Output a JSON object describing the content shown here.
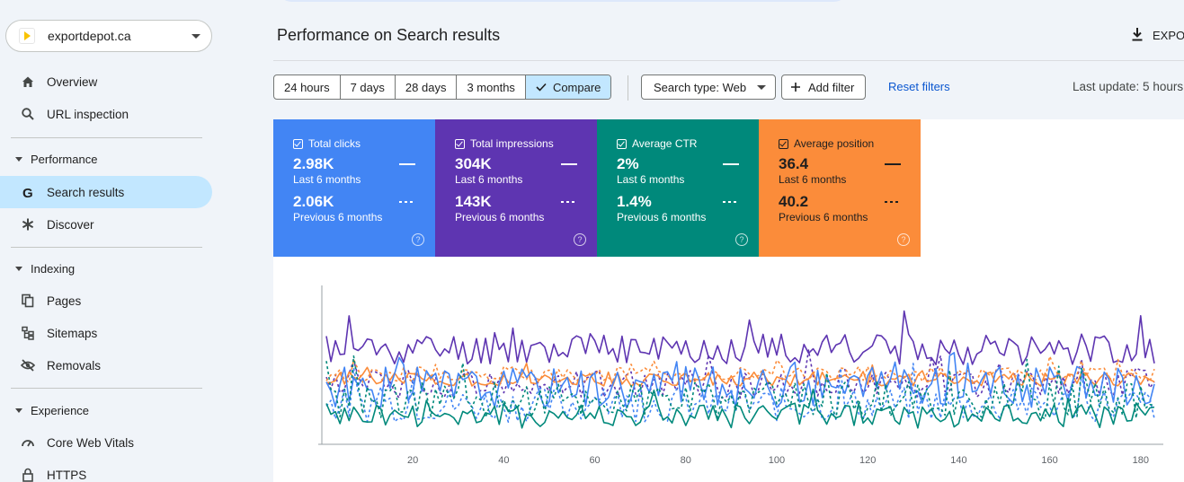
{
  "property": {
    "name": "exportdepot.ca"
  },
  "nav": {
    "overview": "Overview",
    "url_inspection": "URL inspection",
    "performance_section": "Performance",
    "search_results": "Search results",
    "discover": "Discover",
    "indexing_section": "Indexing",
    "pages": "Pages",
    "sitemaps": "Sitemaps",
    "removals": "Removals",
    "experience_section": "Experience",
    "core_web_vitals": "Core Web Vitals",
    "https": "HTTPS"
  },
  "header": {
    "title": "Performance on Search results",
    "export_label": "EXPO"
  },
  "toolbar": {
    "ranges": [
      "24 hours",
      "7 days",
      "28 days",
      "3 months",
      "Compare"
    ],
    "selected_range": "Compare",
    "search_type": "Search type: Web",
    "add_filter": "Add filter",
    "reset_filters": "Reset filters",
    "last_update": "Last update: 5 hours"
  },
  "cards": [
    {
      "name": "Total clicks",
      "current": "2.98K",
      "current_label": "Last 6 months",
      "previous": "2.06K",
      "previous_label": "Previous 6 months",
      "color": "#4285f4"
    },
    {
      "name": "Total impressions",
      "current": "304K",
      "current_label": "Last 6 months",
      "previous": "143K",
      "previous_label": "Previous 6 months",
      "color": "#5e35b1"
    },
    {
      "name": "Average CTR",
      "current": "2%",
      "current_label": "Last 6 months",
      "previous": "1.4%",
      "previous_label": "Previous 6 months",
      "color": "#00897b"
    },
    {
      "name": "Average position",
      "current": "36.4",
      "current_label": "Last 6 months",
      "previous": "40.2",
      "previous_label": "Previous 6 months",
      "color": "#fb8c3a"
    }
  ],
  "chart_data": {
    "type": "line",
    "xlim": [
      1,
      183
    ],
    "x_ticks": [
      20,
      40,
      60,
      80,
      100,
      120,
      140,
      160,
      180
    ],
    "series": [
      {
        "key": "impressions",
        "style": "solid",
        "color": "#5e35b1",
        "base": 0.6,
        "amp": 0.1,
        "seed": 11
      },
      {
        "key": "impressions-prev",
        "style": "dashed",
        "color": "#5e35b1",
        "base": 0.38,
        "amp": 0.09,
        "seed": 12
      },
      {
        "key": "position",
        "style": "solid",
        "color": "#fb8c3a",
        "base": 0.41,
        "amp": 0.045,
        "seed": 21
      },
      {
        "key": "position-prev",
        "style": "dashed",
        "color": "#fb8c3a",
        "base": 0.44,
        "amp": 0.05,
        "seed": 22
      },
      {
        "key": "clicks",
        "style": "solid",
        "color": "#4285f4",
        "base": 0.36,
        "amp": 0.13,
        "seed": 31
      },
      {
        "key": "clicks-prev",
        "style": "dashed",
        "color": "#4285f4",
        "base": 0.25,
        "amp": 0.11,
        "seed": 32
      },
      {
        "key": "ctr",
        "style": "solid",
        "color": "#00897b",
        "base": 0.18,
        "amp": 0.08,
        "seed": 41
      },
      {
        "key": "ctr-prev",
        "style": "dashed",
        "color": "#00897b",
        "base": 0.28,
        "amp": 0.12,
        "seed": 42
      }
    ]
  }
}
